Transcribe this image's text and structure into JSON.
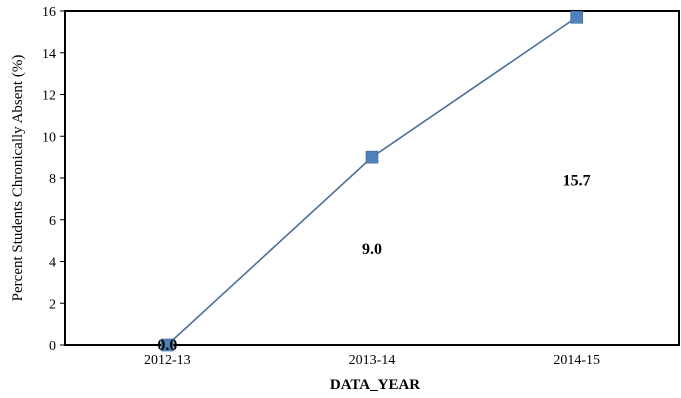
{
  "chart_data": {
    "type": "line",
    "categories": [
      "2012-13",
      "2013-14",
      "2014-15"
    ],
    "series": [
      {
        "values": [
          0.0,
          9.0,
          15.7
        ],
        "labels": [
          "0.0",
          "9.0",
          "15.7"
        ],
        "color": "#4f81bd",
        "line_color": "#4a6f9f",
        "marker": "square"
      }
    ],
    "title": "",
    "xlabel": "DATA_YEAR",
    "ylabel": "Percent Students Chronically Absent (%)",
    "ylim": [
      0,
      16
    ],
    "yticks": [
      "0",
      "2",
      "4",
      "6",
      "8",
      "10",
      "12",
      "14",
      "16"
    ],
    "grid": false,
    "legend": "none"
  }
}
